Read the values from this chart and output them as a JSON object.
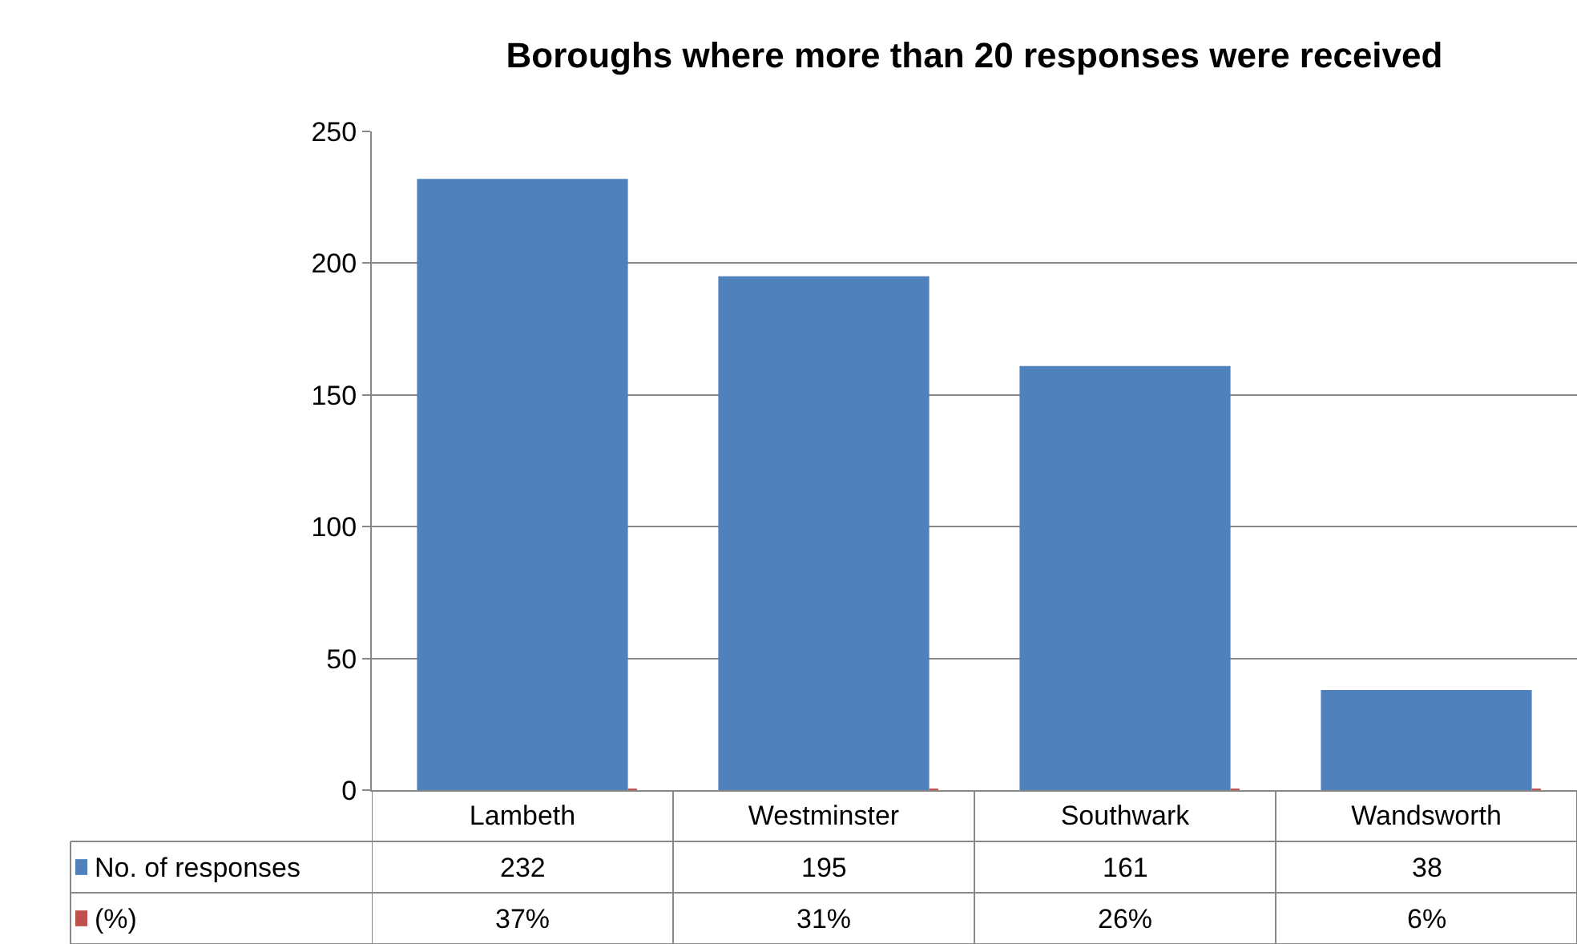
{
  "chart_data": {
    "type": "bar",
    "title": "Boroughs where more than 20 responses were received",
    "categories": [
      "Lambeth",
      "Westminster",
      "Southwark",
      "Wandsworth"
    ],
    "series": [
      {
        "name": "No. of responses",
        "color": "#4f81bd",
        "values": [
          232,
          195,
          161,
          38
        ],
        "value_labels": [
          "232",
          "195",
          "161",
          "38"
        ]
      },
      {
        "name": "(%)",
        "color": "#c0504d",
        "values": [
          0.37,
          0.31,
          0.26,
          0.06
        ],
        "value_labels": [
          "37%",
          "31%",
          "26%",
          "6%"
        ]
      }
    ],
    "ylim": [
      0,
      250
    ],
    "yticks": [
      0,
      50,
      100,
      150,
      200,
      250
    ],
    "grid": "y",
    "legend": "bottom left"
  }
}
